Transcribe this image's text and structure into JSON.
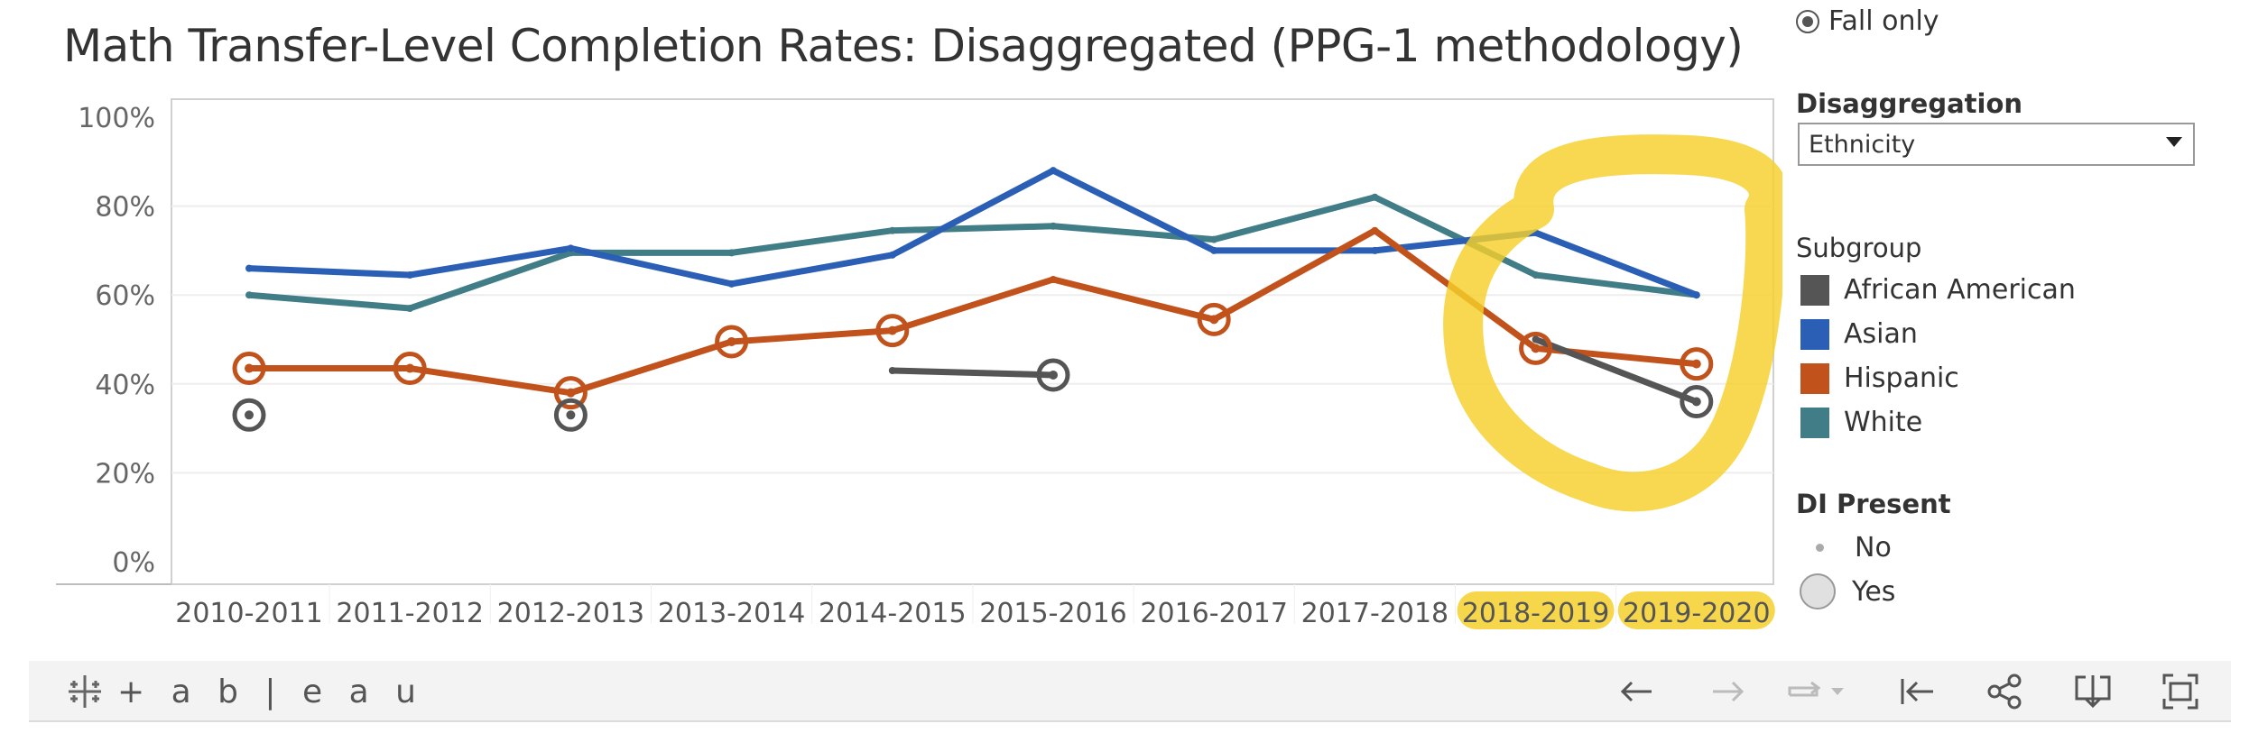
{
  "title": "Math Transfer-Level Completion Rates: Disaggregated (PPG-1 methodology)",
  "term_filter": {
    "selected_label": "Fall only"
  },
  "disaggregation": {
    "label": "Disaggregation",
    "value": "Ethnicity"
  },
  "subgroup_legend": {
    "title": "Subgroup",
    "items": [
      {
        "label": "African American",
        "color": "#555555"
      },
      {
        "label": "Asian",
        "color": "#2a5fb5"
      },
      {
        "label": "Hispanic",
        "color": "#c2521c"
      },
      {
        "label": "White",
        "color": "#417d87"
      }
    ]
  },
  "di_legend": {
    "title": "DI Present",
    "items": [
      {
        "label": "No"
      },
      {
        "label": "Yes"
      }
    ]
  },
  "toolbar": {
    "logo_text": "+ a b | e a u",
    "icons": [
      "undo-icon",
      "redo-icon",
      "replay-icon",
      "revert-icon",
      "share-icon",
      "download-icon",
      "fullscreen-icon"
    ]
  },
  "chart_data": {
    "type": "line",
    "categories": [
      "2010-2011",
      "2011-2012",
      "2012-2013",
      "2013-2014",
      "2014-2015",
      "2015-2016",
      "2016-2017",
      "2017-2018",
      "2018-2019",
      "2019-2020"
    ],
    "highlighted_categories": [
      "2018-2019",
      "2019-2020"
    ],
    "ylim": [
      0,
      100
    ],
    "yticks": [
      0,
      20,
      40,
      60,
      80,
      100
    ],
    "ytick_labels": [
      "0%",
      "20%",
      "40%",
      "60%",
      "80%",
      "100%"
    ],
    "grid": true,
    "series": [
      {
        "name": "African American",
        "color": "#555555",
        "values": [
          33,
          null,
          33,
          null,
          43,
          42,
          null,
          null,
          50,
          36
        ],
        "di": [
          true,
          false,
          true,
          false,
          false,
          true,
          false,
          false,
          false,
          true
        ]
      },
      {
        "name": "Asian",
        "color": "#2a5fb5",
        "values": [
          66,
          64.5,
          70.5,
          62.5,
          69,
          88,
          70,
          70,
          74,
          60
        ],
        "di": [
          false,
          false,
          false,
          false,
          false,
          false,
          false,
          false,
          false,
          false
        ]
      },
      {
        "name": "Hispanic",
        "color": "#c2521c",
        "values": [
          43.5,
          43.5,
          38,
          49.5,
          52,
          63.5,
          54.5,
          74.5,
          48,
          44.5
        ],
        "di": [
          true,
          true,
          true,
          true,
          true,
          false,
          true,
          false,
          true,
          true
        ]
      },
      {
        "name": "White",
        "color": "#417d87",
        "values": [
          60,
          57,
          69.5,
          69.5,
          74.5,
          75.5,
          72.5,
          82,
          64.5,
          60
        ],
        "di": [
          false,
          false,
          false,
          false,
          false,
          false,
          false,
          false,
          false,
          false
        ]
      }
    ]
  }
}
